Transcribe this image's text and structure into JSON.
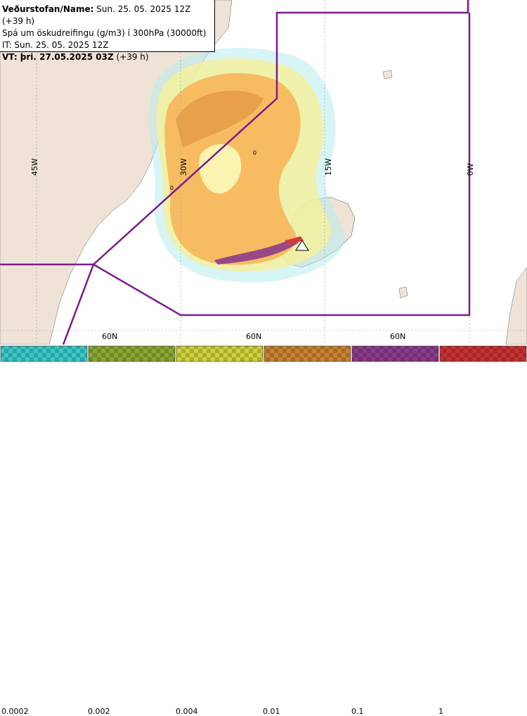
{
  "info": {
    "line1_label": "Veðurstofan/Name:",
    "line1_value": " Sun. 25. 05. 2025 12Z (+39 h)",
    "line2": "Spá um öskudreifingu (g/m3) í 300hPa (30000ft)",
    "line3": "IT: Sun. 25. 05. 2025 12Z",
    "line4_label": "VT: þri. 27.05.2025 03Z",
    "line4_value": " (+39 h)"
  },
  "map": {
    "lon_labels": [
      "45W",
      "30W",
      "15W",
      "0W"
    ],
    "lat_labels": [
      "60N",
      "60N",
      "60N"
    ],
    "contour_labels": [
      "0",
      "0"
    ]
  },
  "legend": {
    "ticks": [
      "0.0002",
      "0.002",
      "0.004",
      "0.01",
      "0.1",
      "1"
    ],
    "colors": [
      "#3cc8c8",
      "#8aa832",
      "#d2d23c",
      "#c88232",
      "#8c3c8c",
      "#c83232"
    ]
  }
}
